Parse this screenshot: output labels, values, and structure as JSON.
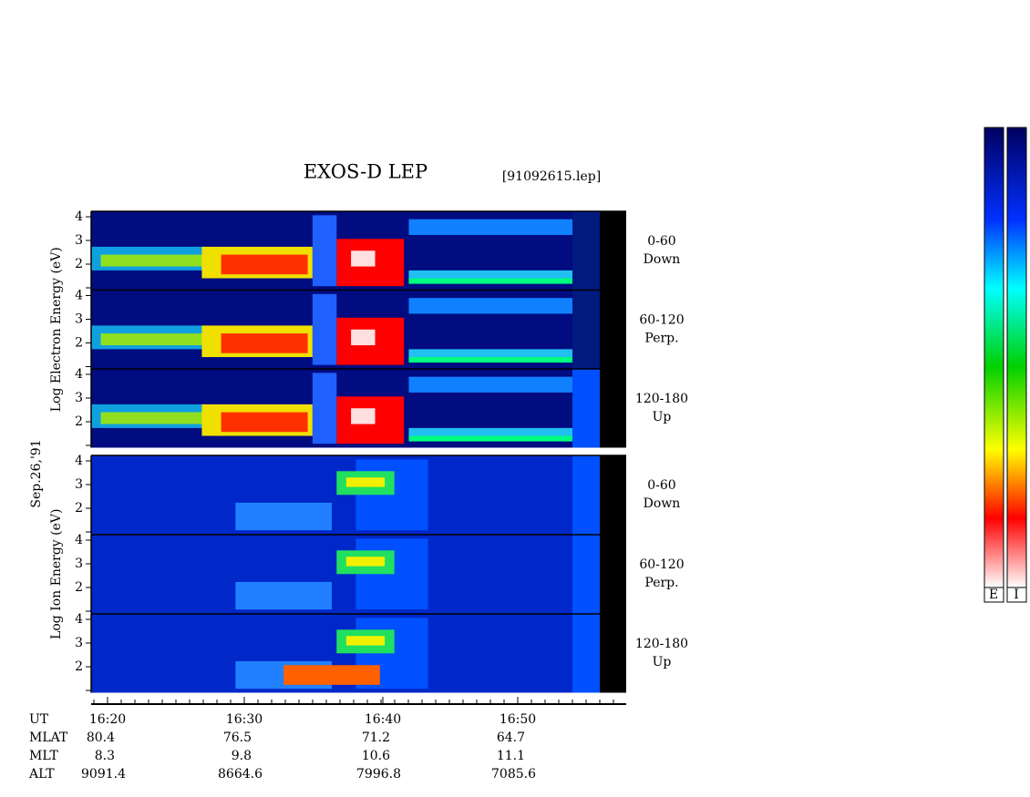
{
  "title": "EXOS-D LEP",
  "file_label": "[91092615.lep]",
  "date_label": "Sep.26,'91",
  "energy_ticks": [
    4,
    3,
    2
  ],
  "sections": [
    {
      "axis_label": "Log Electron Energy (eV)",
      "panels": [
        {
          "label": [
            "0-60",
            "Down"
          ]
        },
        {
          "label": [
            "60-120",
            "Perp."
          ]
        },
        {
          "label": [
            "120-180",
            "Up"
          ]
        }
      ]
    },
    {
      "axis_label": "Log Ion Energy (eV)",
      "panels": [
        {
          "label": [
            "0-60",
            "Down"
          ]
        },
        {
          "label": [
            "60-120",
            "Perp."
          ]
        },
        {
          "label": [
            "120-180",
            "Up"
          ]
        }
      ]
    }
  ],
  "time_axis": {
    "rows": [
      {
        "name": "UT",
        "values": [
          "16:20",
          "16:30",
          "16:40",
          "16:50"
        ]
      },
      {
        "name": "MLAT",
        "values": [
          80.4,
          76.5,
          71.2,
          64.7
        ]
      },
      {
        "name": "MLT",
        "values": [
          8.3,
          9.8,
          10.6,
          11.1
        ]
      },
      {
        "name": "ALT",
        "values": [
          9091.4,
          8664.6,
          7996.8,
          7085.6
        ]
      }
    ]
  },
  "colorbar_labels": [
    "E",
    "I"
  ]
}
